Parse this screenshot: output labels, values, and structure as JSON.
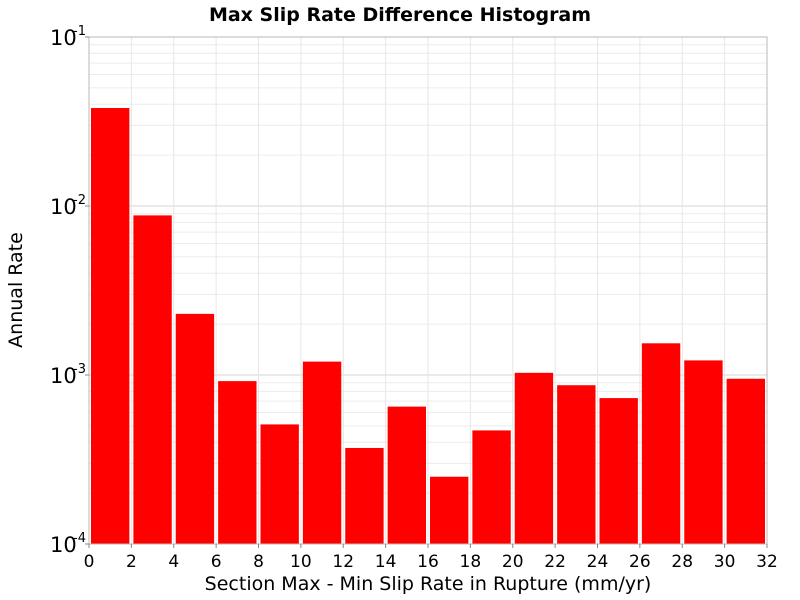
{
  "chart_data": {
    "type": "bar",
    "title": "Max Slip Rate Difference Histogram",
    "xlabel": "Section Max - Min Slip Rate in Rupture (mm/yr)",
    "ylabel": "Annual Rate",
    "yscale": "log",
    "ylim": [
      0.0001,
      0.1
    ],
    "xlim": [
      0,
      32
    ],
    "bin_width": 2,
    "x": [
      1,
      3,
      5,
      7,
      9,
      11,
      13,
      15,
      17,
      19,
      21,
      23,
      25,
      27,
      29,
      31
    ],
    "values": [
      0.038,
      0.0088,
      0.0023,
      0.00092,
      0.00051,
      0.0012,
      0.00037,
      0.00065,
      0.00025,
      0.00047,
      0.00103,
      0.00087,
      0.00073,
      0.00154,
      0.00122,
      0.00095
    ],
    "x_ticks": [
      "0",
      "2",
      "4",
      "6",
      "8",
      "10",
      "12",
      "14",
      "16",
      "18",
      "20",
      "22",
      "24",
      "26",
      "28",
      "30",
      "32"
    ],
    "y_ticks": [
      {
        "base": "10",
        "exp": "-1"
      },
      {
        "base": "10",
        "exp": "-2"
      },
      {
        "base": "10",
        "exp": "-3"
      },
      {
        "base": "10",
        "exp": "-4"
      }
    ],
    "bar_color": "#ff0000",
    "grid": true,
    "legend": "none"
  }
}
